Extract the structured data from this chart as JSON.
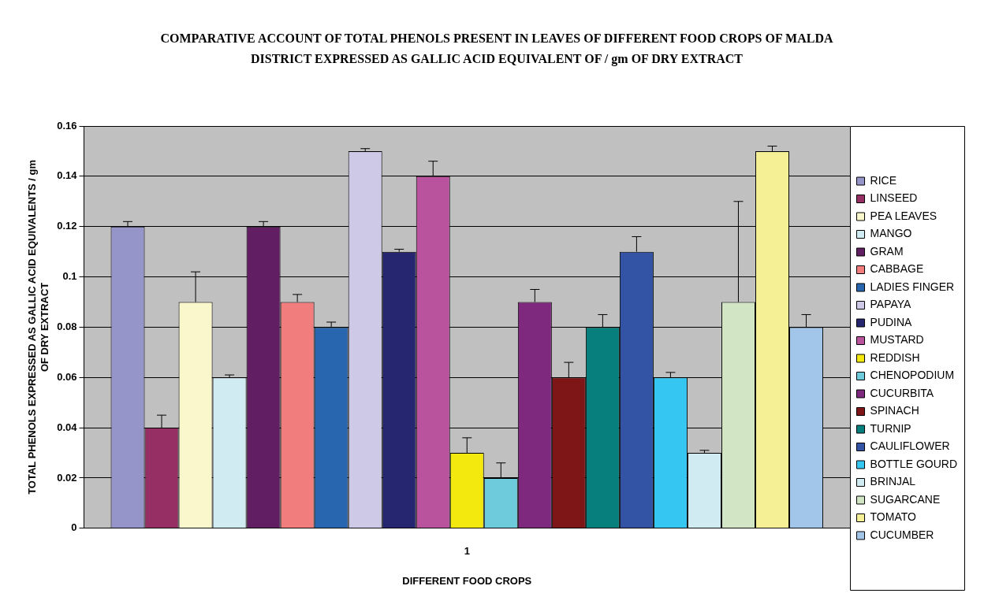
{
  "chart_data": {
    "type": "bar",
    "title": "COMPARATIVE ACCOUNT OF TOTAL PHENOLS PRESENT IN LEAVES OF DIFFERENT FOOD CROPS OF MALDA DISTRICT EXPRESSED AS GALLIC ACID EQUIVALENT OF / gm OF DRY EXTRACT",
    "xlabel": "DIFFERENT FOOD CROPS",
    "ylabel": "TOTAL PHENOLS EXPRESSED AS GALLIC ACID EQUIVALENTS / gm OF DRY EXTRACT",
    "categories": [
      "1"
    ],
    "ylim": [
      0,
      0.16
    ],
    "yticks": [
      0,
      0.02,
      0.04,
      0.06,
      0.08,
      0.1,
      0.12,
      0.14,
      0.16
    ],
    "grid": "y",
    "legend": "right",
    "series": [
      {
        "name": "RICE",
        "color": "#9595ca",
        "values": [
          0.12
        ],
        "errors": [
          [
            0.12,
            0.122
          ]
        ]
      },
      {
        "name": "LINSEED",
        "color": "#962f63",
        "values": [
          0.04
        ],
        "errors": [
          [
            0.04,
            0.045
          ]
        ]
      },
      {
        "name": "PEA LEAVES",
        "color": "#fbf7cc",
        "values": [
          0.09
        ],
        "errors": [
          [
            0.09,
            0.102
          ]
        ]
      },
      {
        "name": "MANGO",
        "color": "#d0ebf2",
        "values": [
          0.06
        ],
        "errors": [
          [
            0.06,
            0.061
          ]
        ]
      },
      {
        "name": "GRAM",
        "color": "#611e62",
        "values": [
          0.12
        ],
        "errors": [
          [
            0.12,
            0.122
          ]
        ]
      },
      {
        "name": "CABBAGE",
        "color": "#f27d7d",
        "values": [
          0.09
        ],
        "errors": [
          [
            0.09,
            0.093
          ]
        ]
      },
      {
        "name": "LADIES FINGER",
        "color": "#2866b0",
        "values": [
          0.08
        ],
        "errors": [
          [
            0.08,
            0.082
          ]
        ]
      },
      {
        "name": "PAPAYA",
        "color": "#cdc9e6",
        "values": [
          0.15
        ],
        "errors": [
          [
            0.15,
            0.151
          ]
        ]
      },
      {
        "name": "PUDINA",
        "color": "#25266f",
        "values": [
          0.11
        ],
        "errors": [
          [
            0.11,
            0.111
          ]
        ]
      },
      {
        "name": "MUSTARD",
        "color": "#b9539e",
        "values": [
          0.14
        ],
        "errors": [
          [
            0.14,
            0.146
          ]
        ]
      },
      {
        "name": "REDDISH",
        "color": "#f3e90e",
        "values": [
          0.03
        ],
        "errors": [
          [
            0.03,
            0.036
          ]
        ]
      },
      {
        "name": "CHENOPODIUM",
        "color": "#6ecbdc",
        "values": [
          0.02
        ],
        "errors": [
          [
            0.02,
            0.026
          ]
        ]
      },
      {
        "name": "CUCURBITA",
        "color": "#7e287e",
        "values": [
          0.09
        ],
        "errors": [
          [
            0.09,
            0.095
          ]
        ]
      },
      {
        "name": "SPINACH",
        "color": "#7e1517",
        "values": [
          0.06
        ],
        "errors": [
          [
            0.06,
            0.066
          ]
        ]
      },
      {
        "name": "TURNIP",
        "color": "#077f7c",
        "values": [
          0.08
        ],
        "errors": [
          [
            0.08,
            0.085
          ]
        ]
      },
      {
        "name": "CAULIFLOWER",
        "color": "#3353a5",
        "values": [
          0.11
        ],
        "errors": [
          [
            0.11,
            0.116
          ]
        ]
      },
      {
        "name": "BOTTLE GOURD",
        "color": "#36c6f2",
        "values": [
          0.06
        ],
        "errors": [
          [
            0.06,
            0.062
          ]
        ]
      },
      {
        "name": "BRINJAL",
        "color": "#d0ebf2",
        "values": [
          0.03
        ],
        "errors": [
          [
            0.03,
            0.031
          ]
        ]
      },
      {
        "name": "SUGARCANE",
        "color": "#d2e6c5",
        "values": [
          0.09
        ],
        "errors": [
          [
            0.09,
            0.13
          ]
        ]
      },
      {
        "name": "TOMATO",
        "color": "#f5f096",
        "values": [
          0.15
        ],
        "errors": [
          [
            0.15,
            0.152
          ]
        ]
      },
      {
        "name": "CUCUMBER",
        "color": "#a2c6ea",
        "values": [
          0.08
        ],
        "errors": [
          [
            0.08,
            0.085
          ]
        ]
      }
    ]
  }
}
